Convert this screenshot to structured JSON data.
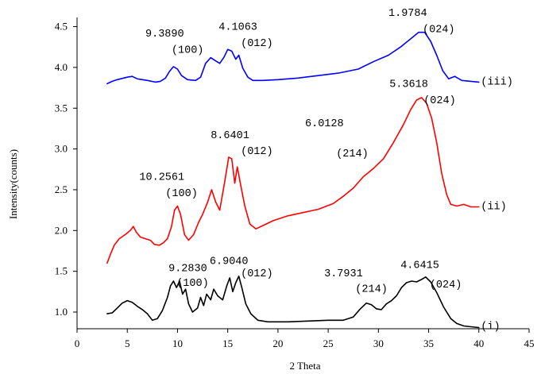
{
  "chart_data": {
    "type": "line",
    "xlabel": "2 Theta",
    "ylabel": "Intensity(counts)",
    "xlim": [
      0,
      45
    ],
    "ylim": [
      0.75,
      4.6
    ],
    "x_ticks": [
      "0",
      "5",
      "10",
      "15",
      "20",
      "25",
      "30",
      "35",
      "40",
      "45"
    ],
    "y_ticks": [
      "1.0",
      "1.5",
      "2.0",
      "2.5",
      "3.0",
      "3.5",
      "4.0",
      "4.5"
    ],
    "series": [
      {
        "name": "(i)",
        "color": "#000000",
        "points": [
          [
            3,
            0.98
          ],
          [
            3.5,
            0.99
          ],
          [
            4,
            1.05
          ],
          [
            4.5,
            1.11
          ],
          [
            5,
            1.14
          ],
          [
            5.5,
            1.12
          ],
          [
            6,
            1.07
          ],
          [
            6.5,
            1.03
          ],
          [
            7,
            0.98
          ],
          [
            7.5,
            0.9
          ],
          [
            8,
            0.92
          ],
          [
            8.5,
            1.02
          ],
          [
            9,
            1.18
          ],
          [
            9.3,
            1.32
          ],
          [
            9.6,
            1.38
          ],
          [
            9.9,
            1.3
          ],
          [
            10.2,
            1.38
          ],
          [
            10.5,
            1.22
          ],
          [
            10.8,
            1.28
          ],
          [
            11.1,
            1.1
          ],
          [
            11.5,
            1.0
          ],
          [
            12,
            1.05
          ],
          [
            12.3,
            1.18
          ],
          [
            12.6,
            1.08
          ],
          [
            12.9,
            1.22
          ],
          [
            13.3,
            1.15
          ],
          [
            13.6,
            1.28
          ],
          [
            14,
            1.2
          ],
          [
            14.5,
            1.15
          ],
          [
            14.9,
            1.32
          ],
          [
            15.2,
            1.42
          ],
          [
            15.5,
            1.25
          ],
          [
            15.8,
            1.36
          ],
          [
            16.1,
            1.44
          ],
          [
            16.4,
            1.3
          ],
          [
            16.8,
            1.1
          ],
          [
            17.3,
            0.98
          ],
          [
            18,
            0.9
          ],
          [
            19,
            0.88
          ],
          [
            21,
            0.88
          ],
          [
            23,
            0.89
          ],
          [
            25,
            0.9
          ],
          [
            26.5,
            0.9
          ],
          [
            27.5,
            0.94
          ],
          [
            28.2,
            1.04
          ],
          [
            28.8,
            1.11
          ],
          [
            29.3,
            1.09
          ],
          [
            29.8,
            1.04
          ],
          [
            30.3,
            1.03
          ],
          [
            30.8,
            1.1
          ],
          [
            31.3,
            1.14
          ],
          [
            31.8,
            1.2
          ],
          [
            32.3,
            1.3
          ],
          [
            32.8,
            1.36
          ],
          [
            33.3,
            1.38
          ],
          [
            33.8,
            1.37
          ],
          [
            34.3,
            1.4
          ],
          [
            34.7,
            1.43
          ],
          [
            35.2,
            1.37
          ],
          [
            35.8,
            1.24
          ],
          [
            36.5,
            1.06
          ],
          [
            37.2,
            0.92
          ],
          [
            37.8,
            0.86
          ],
          [
            38.5,
            0.83
          ],
          [
            39.2,
            0.82
          ],
          [
            40,
            0.81
          ]
        ]
      },
      {
        "name": "(ii)",
        "color": "#ff0000",
        "points": [
          [
            3,
            1.6
          ],
          [
            3.3,
            1.7
          ],
          [
            3.7,
            1.82
          ],
          [
            4.2,
            1.9
          ],
          [
            4.8,
            1.95
          ],
          [
            5.3,
            2.0
          ],
          [
            5.6,
            2.05
          ],
          [
            5.9,
            1.98
          ],
          [
            6.3,
            1.92
          ],
          [
            6.8,
            1.9
          ],
          [
            7.3,
            1.88
          ],
          [
            7.7,
            1.83
          ],
          [
            8.2,
            1.82
          ],
          [
            8.6,
            1.85
          ],
          [
            9,
            1.9
          ],
          [
            9.4,
            2.05
          ],
          [
            9.7,
            2.25
          ],
          [
            10,
            2.3
          ],
          [
            10.3,
            2.2
          ],
          [
            10.7,
            1.95
          ],
          [
            11.1,
            1.88
          ],
          [
            11.6,
            1.95
          ],
          [
            12.1,
            2.1
          ],
          [
            12.5,
            2.2
          ],
          [
            13,
            2.35
          ],
          [
            13.4,
            2.5
          ],
          [
            13.8,
            2.35
          ],
          [
            14.2,
            2.25
          ],
          [
            14.7,
            2.6
          ],
          [
            15.1,
            2.9
          ],
          [
            15.4,
            2.88
          ],
          [
            15.7,
            2.58
          ],
          [
            15.95,
            2.78
          ],
          [
            16.3,
            2.55
          ],
          [
            16.7,
            2.3
          ],
          [
            17.2,
            2.08
          ],
          [
            17.8,
            2.02
          ],
          [
            18.5,
            2.06
          ],
          [
            19.5,
            2.12
          ],
          [
            21,
            2.18
          ],
          [
            22.5,
            2.22
          ],
          [
            24,
            2.26
          ],
          [
            25.5,
            2.33
          ],
          [
            26.5,
            2.42
          ],
          [
            27.5,
            2.52
          ],
          [
            28.5,
            2.66
          ],
          [
            29.5,
            2.76
          ],
          [
            30.5,
            2.88
          ],
          [
            31.5,
            3.08
          ],
          [
            32.5,
            3.3
          ],
          [
            33.2,
            3.48
          ],
          [
            33.8,
            3.6
          ],
          [
            34.3,
            3.63
          ],
          [
            34.8,
            3.56
          ],
          [
            35.3,
            3.38
          ],
          [
            35.8,
            3.08
          ],
          [
            36.3,
            2.7
          ],
          [
            36.8,
            2.44
          ],
          [
            37.2,
            2.32
          ],
          [
            37.8,
            2.3
          ],
          [
            38.5,
            2.32
          ],
          [
            39.2,
            2.29
          ],
          [
            40,
            2.29
          ]
        ]
      },
      {
        "name": "(iii)",
        "color": "#0000ff",
        "points": [
          [
            3,
            3.8
          ],
          [
            3.5,
            3.83
          ],
          [
            4,
            3.85
          ],
          [
            5,
            3.88
          ],
          [
            5.5,
            3.89
          ],
          [
            6,
            3.86
          ],
          [
            7,
            3.84
          ],
          [
            7.8,
            3.82
          ],
          [
            8.3,
            3.83
          ],
          [
            8.8,
            3.87
          ],
          [
            9.2,
            3.95
          ],
          [
            9.6,
            4.01
          ],
          [
            10,
            3.98
          ],
          [
            10.4,
            3.9
          ],
          [
            11,
            3.85
          ],
          [
            11.8,
            3.84
          ],
          [
            12.3,
            3.88
          ],
          [
            12.8,
            4.05
          ],
          [
            13.3,
            4.12
          ],
          [
            13.8,
            4.08
          ],
          [
            14.2,
            4.05
          ],
          [
            14.6,
            4.12
          ],
          [
            15,
            4.22
          ],
          [
            15.4,
            4.2
          ],
          [
            15.8,
            4.1
          ],
          [
            16.1,
            4.15
          ],
          [
            16.5,
            3.99
          ],
          [
            17,
            3.88
          ],
          [
            17.5,
            3.84
          ],
          [
            18.5,
            3.84
          ],
          [
            20,
            3.85
          ],
          [
            22,
            3.87
          ],
          [
            24,
            3.9
          ],
          [
            26,
            3.93
          ],
          [
            28,
            3.98
          ],
          [
            29.5,
            4.07
          ],
          [
            31,
            4.15
          ],
          [
            32.2,
            4.25
          ],
          [
            33.2,
            4.35
          ],
          [
            34,
            4.43
          ],
          [
            34.6,
            4.43
          ],
          [
            35.2,
            4.32
          ],
          [
            35.8,
            4.15
          ],
          [
            36.4,
            3.96
          ],
          [
            37,
            3.86
          ],
          [
            37.6,
            3.89
          ],
          [
            38.3,
            3.84
          ],
          [
            39.2,
            3.83
          ],
          [
            40,
            3.82
          ]
        ]
      }
    ],
    "annotations": [
      {
        "text": "9.2830",
        "x": 9.1,
        "y": 1.5
      },
      {
        "text": "(100)",
        "x": 9.9,
        "y": 1.32
      },
      {
        "text": "6.9040",
        "x": 13.2,
        "y": 1.59
      },
      {
        "text": "(012)",
        "x": 16.3,
        "y": 1.44
      },
      {
        "text": "3.7931",
        "x": 24.6,
        "y": 1.44
      },
      {
        "text": "(214)",
        "x": 27.7,
        "y": 1.25
      },
      {
        "text": "4.6415",
        "x": 32.2,
        "y": 1.54
      },
      {
        "text": "(024)",
        "x": 35.1,
        "y": 1.3
      },
      {
        "text": "(i)",
        "x": 40.2,
        "y": 0.79
      },
      {
        "text": "10.2561",
        "x": 6.2,
        "y": 2.62
      },
      {
        "text": "(100)",
        "x": 8.8,
        "y": 2.42
      },
      {
        "text": "8.6401",
        "x": 13.3,
        "y": 3.13
      },
      {
        "text": "(012)",
        "x": 16.3,
        "y": 2.94
      },
      {
        "text": "6.0128",
        "x": 22.7,
        "y": 3.28
      },
      {
        "text": "(214)",
        "x": 25.8,
        "y": 2.91
      },
      {
        "text": "5.3618",
        "x": 31.1,
        "y": 3.76
      },
      {
        "text": "(024)",
        "x": 34.5,
        "y": 3.56
      },
      {
        "text": "(ii)",
        "x": 40.2,
        "y": 2.26
      },
      {
        "text": "9.3890",
        "x": 6.8,
        "y": 4.38
      },
      {
        "text": "(100)",
        "x": 9.4,
        "y": 4.18
      },
      {
        "text": "4.1063",
        "x": 14.1,
        "y": 4.46
      },
      {
        "text": "(012)",
        "x": 16.3,
        "y": 4.26
      },
      {
        "text": "1.9784",
        "x": 31.0,
        "y": 4.63
      },
      {
        "text": "(024)",
        "x": 34.4,
        "y": 4.43
      },
      {
        "text": "(iii)",
        "x": 40.2,
        "y": 3.79
      }
    ]
  }
}
